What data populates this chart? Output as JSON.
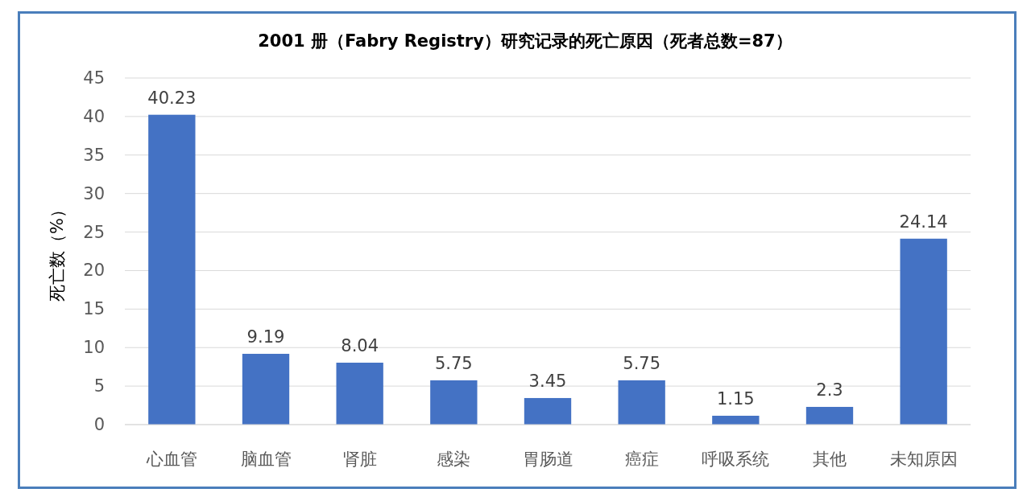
{
  "chart_data": {
    "type": "bar",
    "title": "2001 册（Fabry Registry）研究记录的死亡原因（死者总数=87）",
    "ylabel": "死亡数（%）",
    "categories": [
      "心血管",
      "脑血管",
      "肾脏",
      "感染",
      "胃肠道",
      "癌症",
      "呼吸系统",
      "其他",
      "未知原因"
    ],
    "values": [
      40.23,
      9.19,
      8.04,
      5.75,
      3.45,
      5.75,
      1.15,
      2.3,
      24.14
    ],
    "color": "#4472c4",
    "ylim": [
      0,
      45
    ],
    "yticks": [
      0,
      5,
      10,
      15,
      20,
      25,
      30,
      35,
      40,
      45
    ],
    "grid": "y",
    "data_labels": true
  }
}
